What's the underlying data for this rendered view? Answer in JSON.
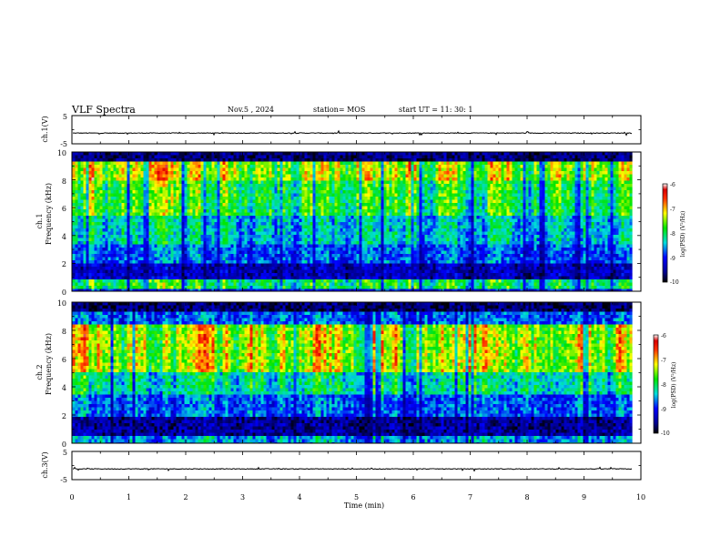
{
  "header": {
    "title": "VLF Spectra",
    "date": "Nov.5  , 2024",
    "station": "station= MOS",
    "start": "start  UT  =    11: 30: 1"
  },
  "chart_data": [
    {
      "name": "ch1-waveform",
      "type": "line",
      "ylabel": "ch.1(V)",
      "ylim": [
        -5,
        5
      ],
      "yticks": [
        "5",
        "-5"
      ],
      "xlim": [
        0,
        10
      ],
      "baseline": -1.2
    },
    {
      "name": "ch1-spectrogram",
      "type": "heatmap",
      "ylabel_top": "ch.1",
      "ylabel": "Frequency  (kHz)",
      "ylim": [
        0,
        10
      ],
      "yticks": [
        "0",
        "2",
        "4",
        "6",
        "8",
        "10"
      ],
      "xlim": [
        0,
        10
      ],
      "colorbar": {
        "label": "log(PSD) (V²/Hz)",
        "range": [
          -10,
          -6
        ],
        "ticks": [
          "-6",
          "-7",
          "-8",
          "-9",
          "-10"
        ]
      }
    },
    {
      "name": "ch2-spectrogram",
      "type": "heatmap",
      "ylabel_top": "ch.2",
      "ylabel": "Frequency  (kHz)",
      "ylim": [
        0,
        10
      ],
      "yticks": [
        "0",
        "2",
        "4",
        "6",
        "8",
        "10"
      ],
      "xlim": [
        0,
        10
      ],
      "colorbar": {
        "label": "log(PSD) (V²/Hz)",
        "range": [
          -10,
          -6
        ],
        "ticks": [
          "-6",
          "-7",
          "-8",
          "-9",
          "-10"
        ]
      }
    },
    {
      "name": "ch3-waveform",
      "type": "line",
      "ylabel": "ch.3(V)",
      "ylim": [
        -5,
        5
      ],
      "yticks": [
        "5",
        "-5"
      ],
      "xlim": [
        0,
        10
      ],
      "baseline": -1.2
    }
  ],
  "xaxis": {
    "label": "Time  (min)",
    "range": [
      0,
      10
    ],
    "data_end": 9.85,
    "ticks": [
      "0",
      "1",
      "2",
      "3",
      "4",
      "5",
      "6",
      "7",
      "8",
      "9",
      "10"
    ]
  }
}
